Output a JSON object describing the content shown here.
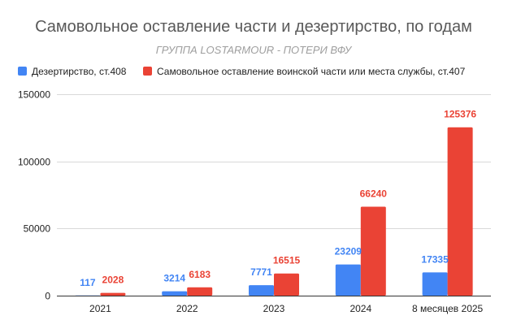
{
  "chart_data": {
    "type": "bar",
    "title": "Самовольное оставление части и дезертирство, по годам",
    "subtitle": "ГРУППА LOSTARMOUR - ПОТЕРИ ВФУ",
    "xlabel": "",
    "ylabel": "",
    "ylim": [
      0,
      150000
    ],
    "yticks": [
      0,
      50000,
      100000,
      150000
    ],
    "grid": true,
    "legend_position": "top-left",
    "categories": [
      "2021",
      "2022",
      "2023",
      "2024",
      "8 месяцев 2025"
    ],
    "series": [
      {
        "name": "Дезертирство, ст.408",
        "color": "#4285f4",
        "values": [
          117,
          3214,
          7771,
          23209,
          17335
        ],
        "labels": [
          "117",
          "3214",
          "7771",
          "23209",
          "17335"
        ]
      },
      {
        "name": "Самовольное оставление воинской части или места службы, ст.407",
        "color": "#ea4335",
        "values": [
          2028,
          6183,
          16515,
          66240,
          125376
        ],
        "labels": [
          "2028",
          "6183",
          "16515",
          "66240",
          "125376"
        ]
      }
    ]
  }
}
